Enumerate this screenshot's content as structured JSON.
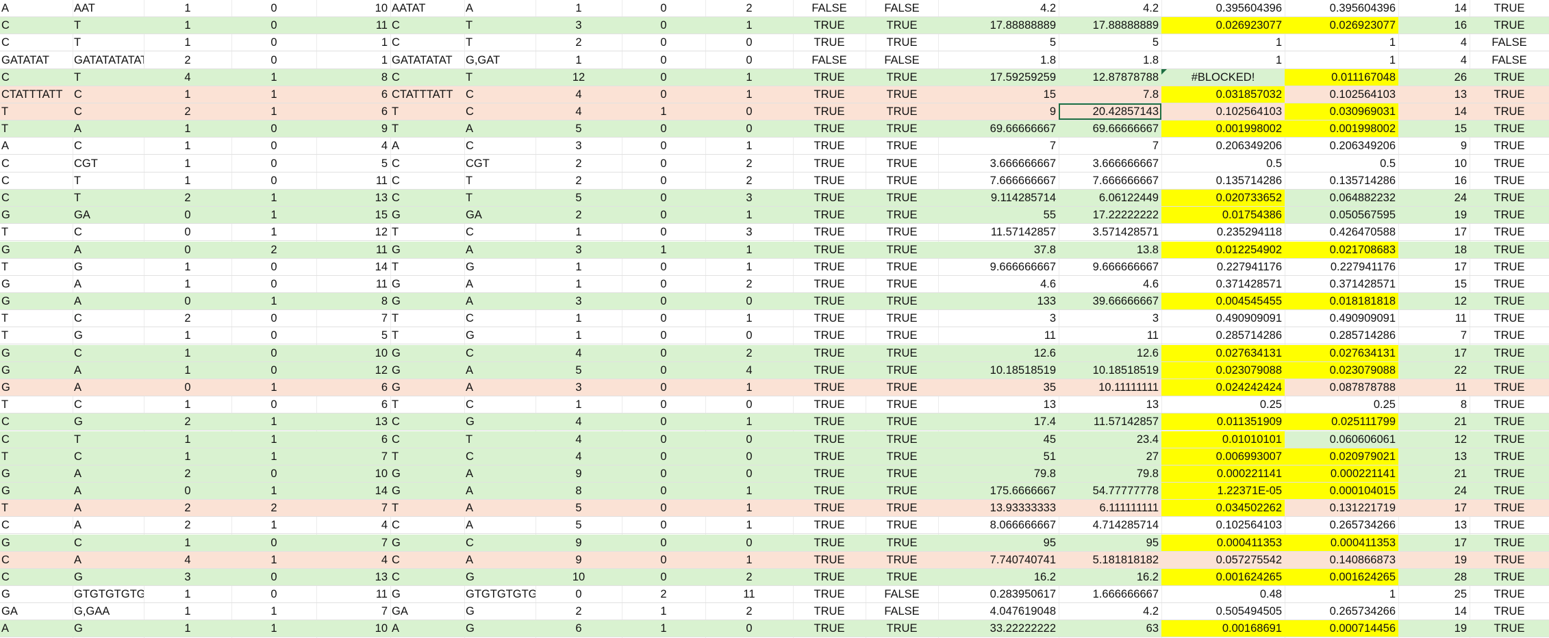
{
  "highlight_colors": {
    "green_row": "#d9f2d0",
    "red_row": "#fbe2d5",
    "yellow_cell": "#ffff00",
    "selection": "#1e6e42"
  },
  "rows": [
    {
      "fill": "",
      "cells": [
        "A",
        "AAT",
        "1",
        "0",
        "10",
        "AATAT",
        "A",
        "1",
        "0",
        "2",
        "FALSE",
        "FALSE",
        "4.2",
        "4.2",
        "0.395604396",
        "0.395604396",
        "14",
        "TRUE"
      ],
      "yellow": []
    },
    {
      "fill": "g",
      "cells": [
        "C",
        "T",
        "1",
        "0",
        "11",
        "C",
        "T",
        "3",
        "0",
        "1",
        "TRUE",
        "TRUE",
        "17.88888889",
        "17.88888889",
        "0.026923077",
        "0.026923077",
        "16",
        "TRUE"
      ],
      "yellow": [
        14,
        15
      ]
    },
    {
      "fill": "",
      "cells": [
        "C",
        "T",
        "1",
        "0",
        "1",
        "C",
        "T",
        "2",
        "0",
        "0",
        "TRUE",
        "TRUE",
        "5",
        "5",
        "1",
        "1",
        "4",
        "FALSE"
      ],
      "yellow": []
    },
    {
      "fill": "",
      "cells": [
        "GATATAT",
        "GATATATATATA",
        "2",
        "0",
        "1",
        "GATATATAT",
        "G,GAT",
        "1",
        "0",
        "0",
        "FALSE",
        "FALSE",
        "1.8",
        "1.8",
        "1",
        "1",
        "4",
        "FALSE"
      ],
      "yellow": []
    },
    {
      "fill": "g",
      "cells": [
        "C",
        "T",
        "4",
        "1",
        "8",
        "C",
        "T",
        "12",
        "0",
        "1",
        "TRUE",
        "TRUE",
        "17.59259259",
        "12.87878788",
        "#BLOCKED!",
        "0.011167048",
        "26",
        "TRUE"
      ],
      "yellow": [
        15
      ]
    },
    {
      "fill": "r",
      "cells": [
        "CTATTTATT",
        "C",
        "1",
        "1",
        "6",
        "CTATTTATT",
        "C",
        "4",
        "0",
        "1",
        "TRUE",
        "TRUE",
        "15",
        "7.8",
        "0.031857032",
        "0.102564103",
        "13",
        "TRUE"
      ],
      "yellow": [
        14
      ]
    },
    {
      "fill": "r",
      "cells": [
        "T",
        "C",
        "2",
        "1",
        "6",
        "T",
        "C",
        "4",
        "1",
        "0",
        "TRUE",
        "TRUE",
        "9",
        "20.42857143",
        "0.102564103",
        "0.030969031",
        "14",
        "TRUE"
      ],
      "yellow": [
        15
      ]
    },
    {
      "fill": "g",
      "cells": [
        "T",
        "A",
        "1",
        "0",
        "9",
        "T",
        "A",
        "5",
        "0",
        "0",
        "TRUE",
        "TRUE",
        "69.66666667",
        "69.66666667",
        "0.001998002",
        "0.001998002",
        "15",
        "TRUE"
      ],
      "yellow": [
        14,
        15
      ]
    },
    {
      "fill": "",
      "cells": [
        "A",
        "C",
        "1",
        "0",
        "4",
        "A",
        "C",
        "3",
        "0",
        "1",
        "TRUE",
        "TRUE",
        "7",
        "7",
        "0.206349206",
        "0.206349206",
        "9",
        "TRUE"
      ],
      "yellow": []
    },
    {
      "fill": "",
      "cells": [
        "C",
        "CGT",
        "1",
        "0",
        "5",
        "C",
        "CGT",
        "2",
        "0",
        "2",
        "TRUE",
        "TRUE",
        "3.666666667",
        "3.666666667",
        "0.5",
        "0.5",
        "10",
        "TRUE"
      ],
      "yellow": []
    },
    {
      "fill": "",
      "cells": [
        "C",
        "T",
        "1",
        "0",
        "11",
        "C",
        "T",
        "2",
        "0",
        "2",
        "TRUE",
        "TRUE",
        "7.666666667",
        "7.666666667",
        "0.135714286",
        "0.135714286",
        "16",
        "TRUE"
      ],
      "yellow": []
    },
    {
      "fill": "g",
      "cells": [
        "C",
        "T",
        "2",
        "1",
        "13",
        "C",
        "T",
        "5",
        "0",
        "3",
        "TRUE",
        "TRUE",
        "9.114285714",
        "6.06122449",
        "0.020733652",
        "0.064882232",
        "24",
        "TRUE"
      ],
      "yellow": [
        14
      ]
    },
    {
      "fill": "g",
      "cells": [
        "G",
        "GA",
        "0",
        "1",
        "15",
        "G",
        "GA",
        "2",
        "0",
        "1",
        "TRUE",
        "TRUE",
        "55",
        "17.22222222",
        "0.01754386",
        "0.050567595",
        "19",
        "TRUE"
      ],
      "yellow": [
        14
      ]
    },
    {
      "fill": "",
      "cells": [
        "T",
        "C",
        "0",
        "1",
        "12",
        "T",
        "C",
        "1",
        "0",
        "3",
        "TRUE",
        "TRUE",
        "11.57142857",
        "3.571428571",
        "0.235294118",
        "0.426470588",
        "17",
        "TRUE"
      ],
      "yellow": []
    },
    {
      "fill": "g",
      "cells": [
        "G",
        "A",
        "0",
        "2",
        "11",
        "G",
        "A",
        "3",
        "1",
        "1",
        "TRUE",
        "TRUE",
        "37.8",
        "13.8",
        "0.012254902",
        "0.021708683",
        "18",
        "TRUE"
      ],
      "yellow": [
        14,
        15
      ]
    },
    {
      "fill": "",
      "cells": [
        "T",
        "G",
        "1",
        "0",
        "14",
        "T",
        "G",
        "1",
        "0",
        "1",
        "TRUE",
        "TRUE",
        "9.666666667",
        "9.666666667",
        "0.227941176",
        "0.227941176",
        "17",
        "TRUE"
      ],
      "yellow": []
    },
    {
      "fill": "",
      "cells": [
        "G",
        "A",
        "1",
        "0",
        "11",
        "G",
        "A",
        "1",
        "0",
        "2",
        "TRUE",
        "TRUE",
        "4.6",
        "4.6",
        "0.371428571",
        "0.371428571",
        "15",
        "TRUE"
      ],
      "yellow": []
    },
    {
      "fill": "g",
      "cells": [
        "G",
        "A",
        "0",
        "1",
        "8",
        "G",
        "A",
        "3",
        "0",
        "0",
        "TRUE",
        "TRUE",
        "133",
        "39.66666667",
        "0.004545455",
        "0.018181818",
        "12",
        "TRUE"
      ],
      "yellow": [
        14,
        15
      ]
    },
    {
      "fill": "",
      "cells": [
        "T",
        "C",
        "2",
        "0",
        "7",
        "T",
        "C",
        "1",
        "0",
        "1",
        "TRUE",
        "TRUE",
        "3",
        "3",
        "0.490909091",
        "0.490909091",
        "11",
        "TRUE"
      ],
      "yellow": []
    },
    {
      "fill": "",
      "cells": [
        "T",
        "G",
        "1",
        "0",
        "5",
        "T",
        "G",
        "1",
        "0",
        "0",
        "TRUE",
        "TRUE",
        "11",
        "11",
        "0.285714286",
        "0.285714286",
        "7",
        "TRUE"
      ],
      "yellow": []
    },
    {
      "fill": "g",
      "cells": [
        "G",
        "C",
        "1",
        "0",
        "10",
        "G",
        "C",
        "4",
        "0",
        "2",
        "TRUE",
        "TRUE",
        "12.6",
        "12.6",
        "0.027634131",
        "0.027634131",
        "17",
        "TRUE"
      ],
      "yellow": [
        14,
        15
      ]
    },
    {
      "fill": "g",
      "cells": [
        "G",
        "A",
        "1",
        "0",
        "12",
        "G",
        "A",
        "5",
        "0",
        "4",
        "TRUE",
        "TRUE",
        "10.18518519",
        "10.18518519",
        "0.023079088",
        "0.023079088",
        "22",
        "TRUE"
      ],
      "yellow": [
        14,
        15
      ]
    },
    {
      "fill": "r",
      "cells": [
        "G",
        "A",
        "0",
        "1",
        "6",
        "G",
        "A",
        "3",
        "0",
        "1",
        "TRUE",
        "TRUE",
        "35",
        "10.11111111",
        "0.024242424",
        "0.087878788",
        "11",
        "TRUE"
      ],
      "yellow": [
        14
      ]
    },
    {
      "fill": "",
      "cells": [
        "T",
        "C",
        "1",
        "0",
        "6",
        "T",
        "C",
        "1",
        "0",
        "0",
        "TRUE",
        "TRUE",
        "13",
        "13",
        "0.25",
        "0.25",
        "8",
        "TRUE"
      ],
      "yellow": []
    },
    {
      "fill": "g",
      "cells": [
        "C",
        "G",
        "2",
        "1",
        "13",
        "C",
        "G",
        "4",
        "0",
        "1",
        "TRUE",
        "TRUE",
        "17.4",
        "11.57142857",
        "0.011351909",
        "0.025111799",
        "21",
        "TRUE"
      ],
      "yellow": [
        14,
        15
      ]
    },
    {
      "fill": "g",
      "cells": [
        "C",
        "T",
        "1",
        "1",
        "6",
        "C",
        "T",
        "4",
        "0",
        "0",
        "TRUE",
        "TRUE",
        "45",
        "23.4",
        "0.01010101",
        "0.060606061",
        "12",
        "TRUE"
      ],
      "yellow": [
        14
      ]
    },
    {
      "fill": "g",
      "cells": [
        "T",
        "C",
        "1",
        "1",
        "7",
        "T",
        "C",
        "4",
        "0",
        "0",
        "TRUE",
        "TRUE",
        "51",
        "27",
        "0.006993007",
        "0.020979021",
        "13",
        "TRUE"
      ],
      "yellow": [
        14,
        15
      ]
    },
    {
      "fill": "g",
      "cells": [
        "G",
        "A",
        "2",
        "0",
        "10",
        "G",
        "A",
        "9",
        "0",
        "0",
        "TRUE",
        "TRUE",
        "79.8",
        "79.8",
        "0.000221141",
        "0.000221141",
        "21",
        "TRUE"
      ],
      "yellow": [
        14,
        15
      ]
    },
    {
      "fill": "g",
      "cells": [
        "G",
        "A",
        "0",
        "1",
        "14",
        "G",
        "A",
        "8",
        "0",
        "1",
        "TRUE",
        "TRUE",
        "175.6666667",
        "54.77777778",
        "1.22371E-05",
        "0.000104015",
        "24",
        "TRUE"
      ],
      "yellow": [
        14,
        15
      ]
    },
    {
      "fill": "r",
      "cells": [
        "T",
        "A",
        "2",
        "2",
        "7",
        "T",
        "A",
        "5",
        "0",
        "1",
        "TRUE",
        "TRUE",
        "13.93333333",
        "6.111111111",
        "0.034502262",
        "0.131221719",
        "17",
        "TRUE"
      ],
      "yellow": [
        14
      ]
    },
    {
      "fill": "",
      "cells": [
        "C",
        "A",
        "2",
        "1",
        "4",
        "C",
        "A",
        "5",
        "0",
        "1",
        "TRUE",
        "TRUE",
        "8.066666667",
        "4.714285714",
        "0.102564103",
        "0.265734266",
        "13",
        "TRUE"
      ],
      "yellow": []
    },
    {
      "fill": "g",
      "cells": [
        "G",
        "C",
        "1",
        "0",
        "7",
        "G",
        "C",
        "9",
        "0",
        "0",
        "TRUE",
        "TRUE",
        "95",
        "95",
        "0.000411353",
        "0.000411353",
        "17",
        "TRUE"
      ],
      "yellow": [
        14,
        15
      ]
    },
    {
      "fill": "r",
      "cells": [
        "C",
        "A",
        "4",
        "1",
        "4",
        "C",
        "A",
        "9",
        "0",
        "1",
        "TRUE",
        "TRUE",
        "7.740740741",
        "5.181818182",
        "0.057275542",
        "0.140866873",
        "19",
        "TRUE"
      ],
      "yellow": []
    },
    {
      "fill": "g",
      "cells": [
        "C",
        "G",
        "3",
        "0",
        "13",
        "C",
        "G",
        "10",
        "0",
        "2",
        "TRUE",
        "TRUE",
        "16.2",
        "16.2",
        "0.001624265",
        "0.001624265",
        "28",
        "TRUE"
      ],
      "yellow": [
        14,
        15
      ]
    },
    {
      "fill": "",
      "cells": [
        "G",
        "GTGTGTGTGTG",
        "1",
        "0",
        "11",
        "G",
        "GTGTGTGTGTG",
        "0",
        "2",
        "11",
        "TRUE",
        "FALSE",
        "0.283950617",
        "1.666666667",
        "0.48",
        "1",
        "25",
        "TRUE"
      ],
      "yellow": []
    },
    {
      "fill": "",
      "cells": [
        "GA",
        "G,GAA",
        "1",
        "1",
        "7",
        "GA",
        "G",
        "2",
        "1",
        "2",
        "TRUE",
        "FALSE",
        "4.047619048",
        "4.2",
        "0.505494505",
        "0.265734266",
        "14",
        "TRUE"
      ],
      "yellow": []
    },
    {
      "fill": "g",
      "cells": [
        "A",
        "G",
        "1",
        "1",
        "10",
        "A",
        "G",
        "6",
        "1",
        "0",
        "TRUE",
        "TRUE",
        "33.22222222",
        "63",
        "0.00168691",
        "0.000714456",
        "19",
        "TRUE"
      ],
      "yellow": [
        14,
        15
      ]
    }
  ]
}
